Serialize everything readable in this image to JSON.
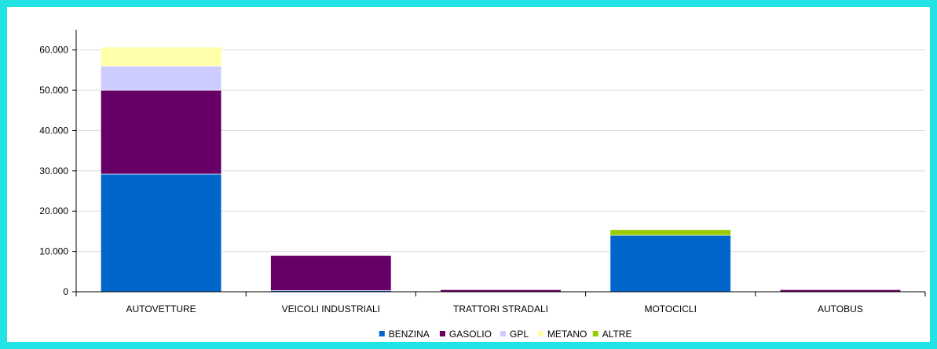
{
  "chart_data": {
    "type": "bar",
    "stacked": true,
    "categories": [
      "AUTOVETTURE",
      "VEICOLI INDUSTRIALI",
      "TRATTORI STRADALI",
      "MOTOCICLI",
      "AUTOBUS"
    ],
    "series": [
      {
        "name": "BENZINA",
        "color": "#0066cc",
        "values": [
          29200,
          300,
          0,
          14000,
          0
        ]
      },
      {
        "name": "GASOLIO",
        "color": "#660066",
        "values": [
          20800,
          8700,
          500,
          0,
          500
        ]
      },
      {
        "name": "GPL",
        "color": "#ccccff",
        "values": [
          6000,
          0,
          0,
          0,
          0
        ]
      },
      {
        "name": "METANO",
        "color": "#ffffaa",
        "values": [
          4700,
          0,
          0,
          0,
          0
        ]
      },
      {
        "name": "ALTRE",
        "color": "#99cc00",
        "values": [
          0,
          0,
          0,
          1400,
          0
        ]
      }
    ],
    "y_ticks": [
      "0",
      "10.000",
      "20.000",
      "30.000",
      "40.000",
      "50.000",
      "60.000"
    ],
    "ylim": [
      0,
      65000
    ],
    "grid": true,
    "legend_position": "bottom"
  }
}
